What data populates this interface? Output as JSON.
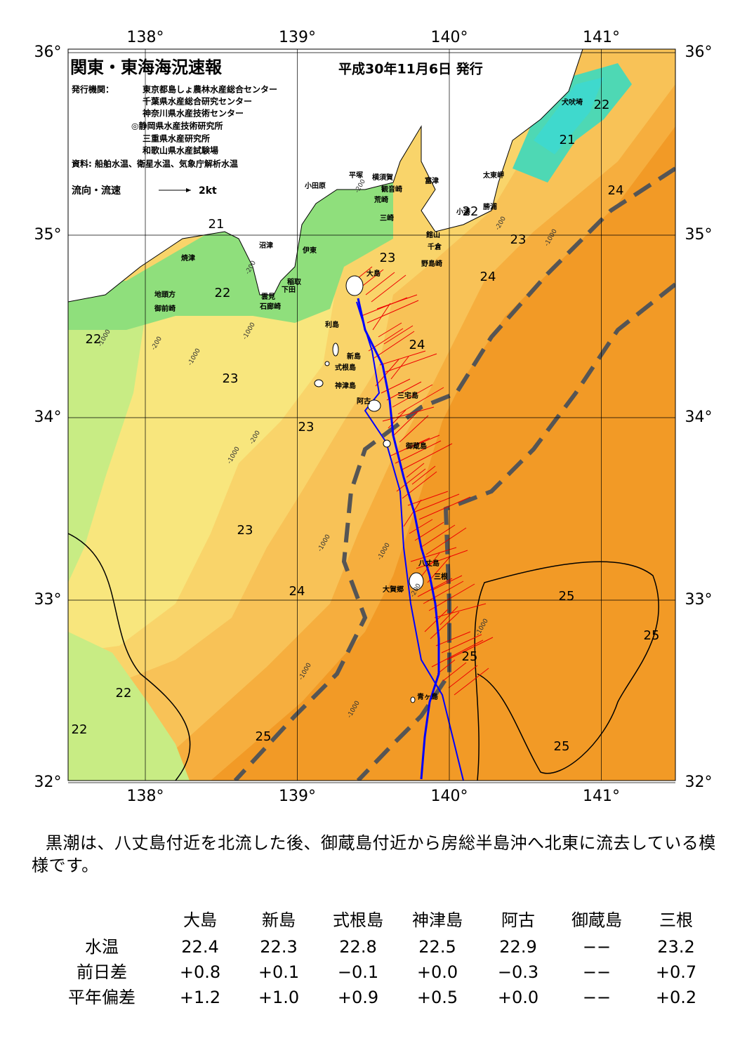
{
  "header": {
    "title": "関東・東海海況速報",
    "date": "平成30年11月6日 発行",
    "issuer_label": "発行機関：",
    "issuers": [
      "東京都島しょ農林水産総合センター",
      "千葉県水産総合研究センター",
      "神奈川県水産技術センター",
      "◎静岡県水産技術研究所",
      "三重県水産研究所",
      "和歌山県水産試験場"
    ],
    "source": "資料: 船舶水温、衛星水温、気象庁解析水温",
    "legend_label": "流向・流速",
    "legend_speed": "2kt"
  },
  "map": {
    "lon_ticks": [
      {
        "value": 138,
        "label": "138°"
      },
      {
        "value": 139,
        "label": "139°"
      },
      {
        "value": 140,
        "label": "140°"
      },
      {
        "value": 141,
        "label": "141°"
      }
    ],
    "lat_ticks": [
      {
        "value": 36,
        "label": "36°"
      },
      {
        "value": 35,
        "label": "35°"
      },
      {
        "value": 34,
        "label": "34°"
      },
      {
        "value": 33,
        "label": "33°"
      },
      {
        "value": 32,
        "label": "32°"
      }
    ],
    "place_names": [
      "犬吠埼",
      "太東岬",
      "勝浦",
      "小湊",
      "富津",
      "横須賀",
      "観音崎",
      "荒崎",
      "平塚",
      "小田原",
      "三崎",
      "館山",
      "千倉",
      "野島崎",
      "沼津",
      "伊東",
      "焼津",
      "稲取",
      "下田",
      "雲見",
      "石廊崎",
      "地頭方",
      "御前崎",
      "大島",
      "利島",
      "新島",
      "式根島",
      "神津島",
      "三宅島",
      "阿古",
      "御蔵島",
      "八丈島",
      "三根",
      "大賀郷",
      "青ヶ島"
    ],
    "temperature_labels": [
      22,
      21,
      24,
      22,
      23,
      21,
      23,
      24,
      22,
      22,
      24,
      23,
      23,
      23,
      24,
      25,
      25,
      25,
      22,
      22,
      25,
      25
    ],
    "depth_labels": [
      "-200",
      "-200",
      "-1000",
      "-200",
      "-1000",
      "-200",
      "-1000",
      "-1000",
      "-200",
      "-1000",
      "-1000",
      "-1000",
      "-200",
      "-1000",
      "-1000",
      "-1000"
    ]
  },
  "text": "黒潮は、八丈島付近を北流した後、御蔵島付近から房総半島沖へ北東に流去している模様です。",
  "table": {
    "columns": [
      "大島",
      "新島",
      "式根島",
      "神津島",
      "阿古",
      "御蔵島",
      "三根"
    ],
    "rows": [
      {
        "label": "水温",
        "values": [
          "22.4",
          "22.3",
          "22.8",
          "22.5",
          "22.9",
          "−−",
          "23.2"
        ]
      },
      {
        "label": "前日差",
        "values": [
          "+0.8",
          "+0.1",
          "−0.1",
          "+0.0",
          "−0.3",
          "−−",
          "+0.7"
        ]
      },
      {
        "label": "平年偏差",
        "values": [
          "+1.2",
          "+1.0",
          "+0.9",
          "+0.5",
          "+0.0",
          "−−",
          "+0.2"
        ]
      }
    ]
  }
}
